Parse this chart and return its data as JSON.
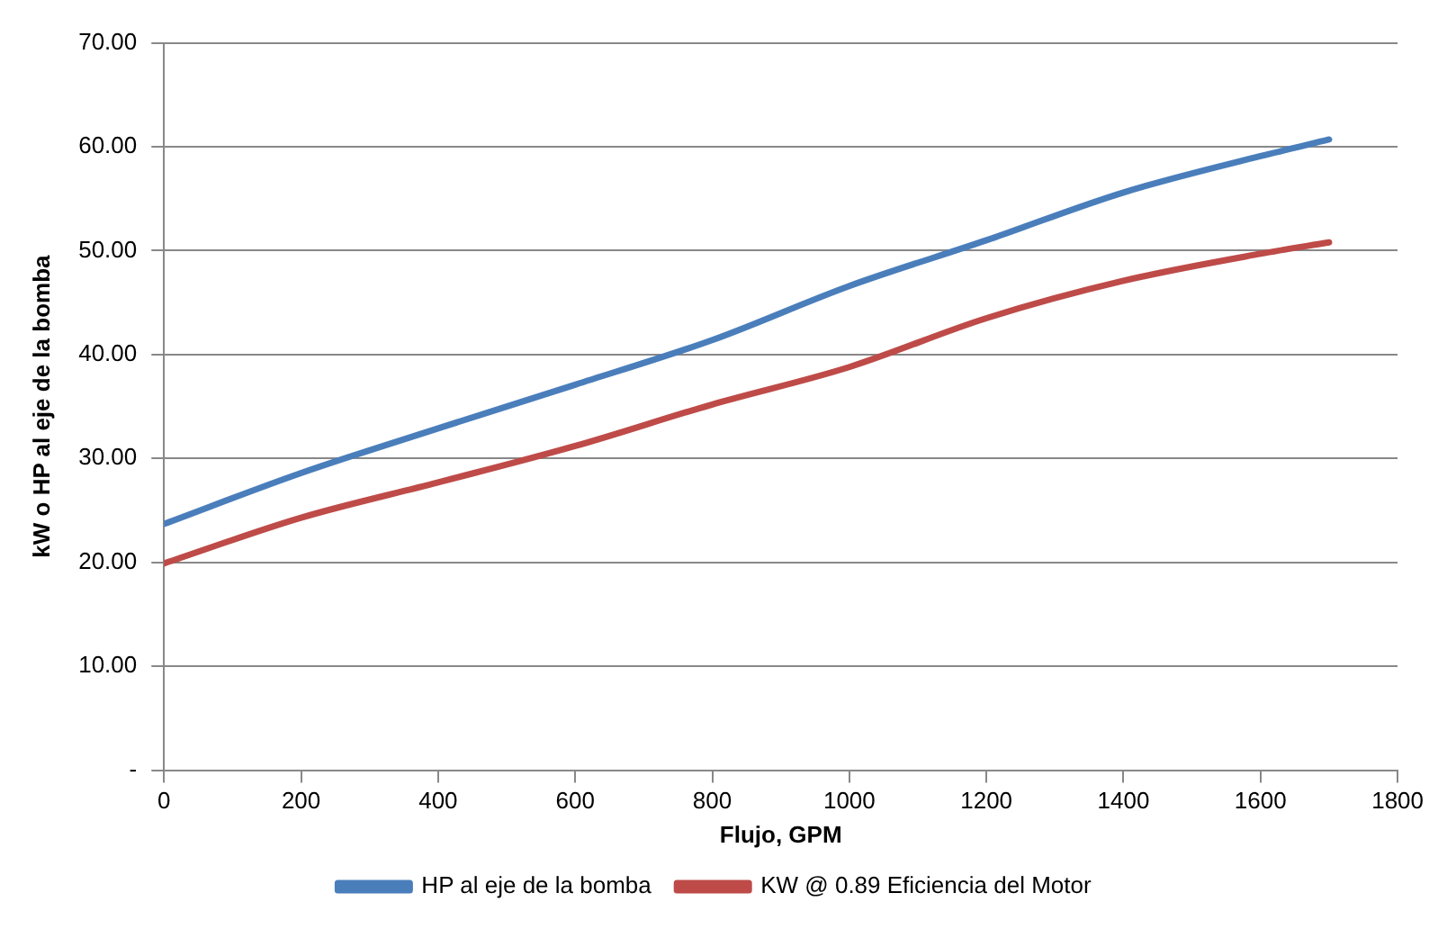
{
  "chart_data": {
    "type": "line",
    "xlabel": "Flujo, GPM",
    "ylabel": "kW o HP al eje de la bomba",
    "xlim": [
      0,
      1800
    ],
    "xticks": [
      0,
      200,
      400,
      600,
      800,
      1000,
      1200,
      1400,
      1600,
      1800
    ],
    "ylim": [
      0,
      70
    ],
    "yticks": [
      {
        "value": 0,
        "label": "-"
      },
      {
        "value": 10,
        "label": "10.00"
      },
      {
        "value": 20,
        "label": "20.00"
      },
      {
        "value": 30,
        "label": "30.00"
      },
      {
        "value": 40,
        "label": "40.00"
      },
      {
        "value": 50,
        "label": "50.00"
      },
      {
        "value": 60,
        "label": "60.00"
      },
      {
        "value": 70,
        "label": "70.00"
      }
    ],
    "x": [
      0,
      200,
      400,
      600,
      800,
      1000,
      1200,
      1400,
      1600,
      1700
    ],
    "series": [
      {
        "name": "HP al eje de la bomba",
        "color": "#4a7ebb",
        "values": [
          23.7,
          28.6,
          32.9,
          37.1,
          41.4,
          46.6,
          51.0,
          55.6,
          59.1,
          60.7
        ]
      },
      {
        "name": "KW @ 0.89 Eficiencia del Motor",
        "color": "#be4b48",
        "values": [
          19.9,
          24.3,
          27.7,
          31.2,
          35.2,
          38.8,
          43.5,
          47.1,
          49.7,
          50.8
        ]
      }
    ],
    "grid": "y",
    "legend": "bottom",
    "marker": "none",
    "line_style": "solid"
  }
}
